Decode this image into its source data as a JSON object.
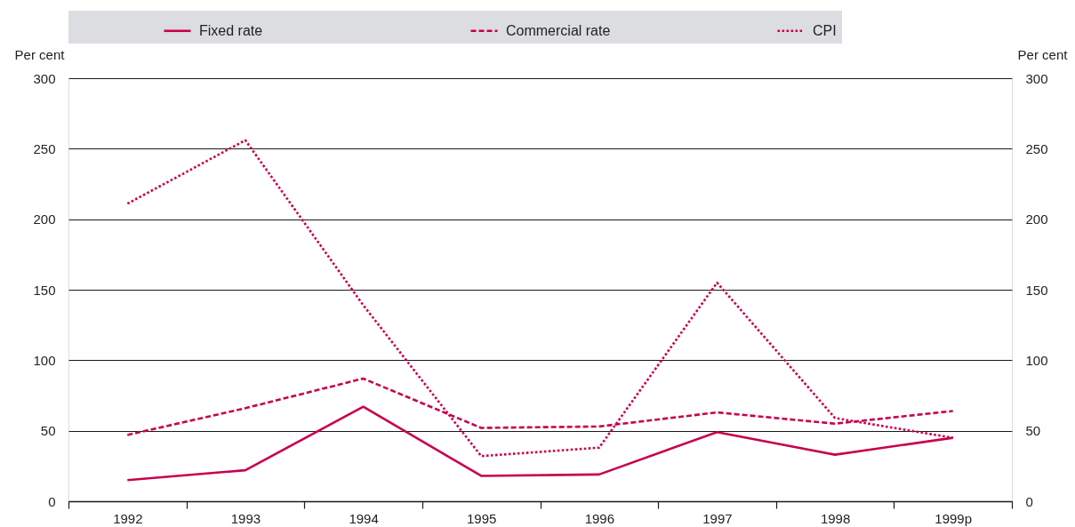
{
  "chart_data": {
    "type": "line",
    "categories": [
      "1992",
      "1993",
      "1994",
      "1995",
      "1996",
      "1997",
      "1998",
      "1999p"
    ],
    "series": [
      {
        "name": "Fixed rate",
        "color": "#c8004f",
        "line_style": "solid",
        "values": [
          15,
          22,
          67,
          18,
          19,
          49,
          33,
          45
        ]
      },
      {
        "name": "Commercial rate",
        "color": "#c8004f",
        "line_style": "dashed",
        "values": [
          47,
          66,
          87,
          52,
          53,
          63,
          55,
          64
        ]
      },
      {
        "name": "CPI",
        "color": "#c8004f",
        "line_style": "dotted",
        "values": [
          211,
          256,
          139,
          32,
          38,
          155,
          59,
          45
        ]
      }
    ],
    "ylabel": "Per cent",
    "y2label": "Per cent",
    "ylim": [
      0,
      300
    ],
    "yticks": [
      0,
      50,
      100,
      150,
      200,
      250,
      300
    ],
    "y2lim": [
      0,
      300
    ],
    "y2ticks": [
      0,
      50,
      100,
      150,
      200,
      250,
      300
    ],
    "grid": "y",
    "legend": "top"
  }
}
